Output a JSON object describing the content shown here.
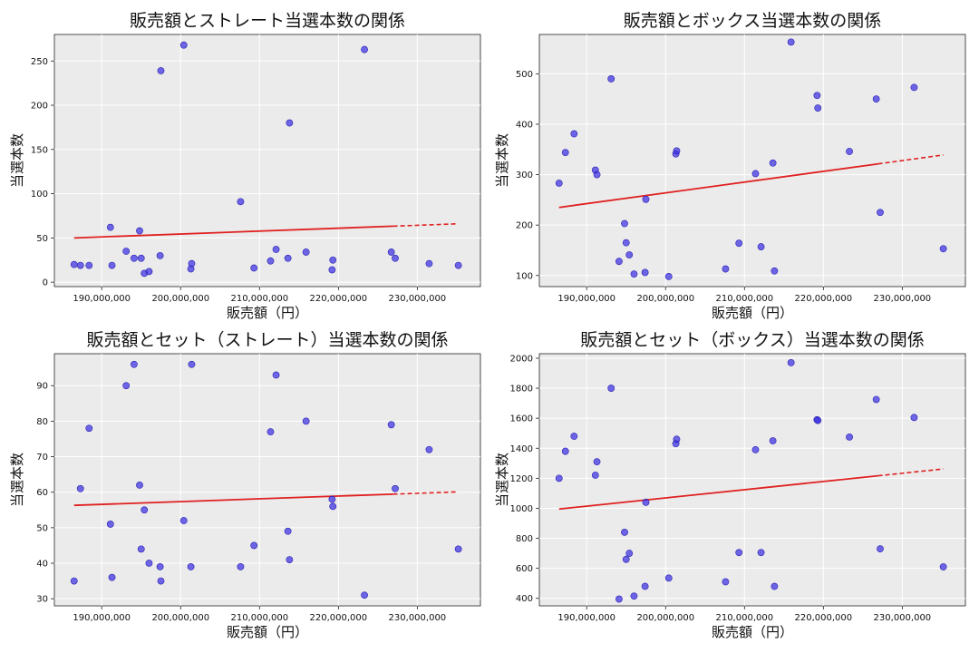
{
  "chart_data": [
    {
      "type": "scatter",
      "title": "販売額とストレート当選本数の関係",
      "xlabel": "販売額（円）",
      "ylabel": "当選本数",
      "xlim": [
        184000000,
        238000000
      ],
      "ylim": [
        -5,
        280
      ],
      "xticks": [
        190000000,
        200000000,
        210000000,
        220000000,
        230000000
      ],
      "xtick_labels": [
        "190,000,000",
        "200,000,000",
        "210,000,000",
        "220,000,000",
        "230,000,000"
      ],
      "yticks": [
        0,
        50,
        100,
        150,
        200,
        250
      ],
      "ytick_labels": [
        "0",
        "50",
        "100",
        "150",
        "200",
        "250"
      ],
      "grid": true,
      "x": [
        186500000,
        187300000,
        188400000,
        191100000,
        191300000,
        193100000,
        194100000,
        194800000,
        195000000,
        195400000,
        196000000,
        197400000,
        197500000,
        200400000,
        201300000,
        201400000,
        207600000,
        209300000,
        211400000,
        212100000,
        213600000,
        213800000,
        215900000,
        219200000,
        219300000,
        223300000,
        226700000,
        227200000,
        231500000,
        235200000
      ],
      "y": [
        20,
        19,
        19,
        62,
        19,
        35,
        27,
        58,
        27,
        10,
        12,
        30,
        239,
        268,
        15,
        21,
        91,
        16,
        24,
        37,
        27,
        180,
        34,
        14,
        25,
        263,
        34,
        27,
        21,
        19
      ],
      "trend": {
        "x1": 186500000,
        "y1": 50,
        "x2": 235200000,
        "y2": 66
      }
    },
    {
      "type": "scatter",
      "title": "販売額とボックス当選本数の関係",
      "xlabel": "販売額（円）",
      "ylabel": "当選本数",
      "xlim": [
        184000000,
        238000000
      ],
      "ylim": [
        78,
        578
      ],
      "xticks": [
        190000000,
        200000000,
        210000000,
        220000000,
        230000000
      ],
      "xtick_labels": [
        "190,000,000",
        "200,000,000",
        "210,000,000",
        "220,000,000",
        "230,000,000"
      ],
      "yticks": [
        100,
        200,
        300,
        400,
        500
      ],
      "ytick_labels": [
        "100",
        "200",
        "300",
        "400",
        "500"
      ],
      "grid": true,
      "x": [
        186500000,
        187300000,
        188400000,
        191100000,
        191300000,
        193100000,
        194100000,
        194800000,
        195000000,
        195400000,
        196000000,
        197400000,
        197500000,
        200400000,
        201300000,
        201400000,
        207600000,
        209300000,
        211400000,
        212100000,
        213600000,
        213800000,
        215900000,
        219200000,
        219300000,
        223300000,
        226700000,
        227200000,
        231500000,
        235200000
      ],
      "y": [
        283,
        344,
        381,
        309,
        300,
        490,
        128,
        203,
        165,
        141,
        103,
        106,
        251,
        98,
        341,
        347,
        113,
        164,
        302,
        157,
        323,
        109,
        563,
        457,
        432,
        346,
        450,
        225,
        473,
        153
      ],
      "trend": {
        "x1": 186500000,
        "y1": 235,
        "x2": 235200000,
        "y2": 339
      }
    },
    {
      "type": "scatter",
      "title": "販売額とセット（ストレート）当選本数の関係",
      "xlabel": "販売額（円）",
      "ylabel": "当選本数",
      "xlim": [
        184000000,
        238000000
      ],
      "ylim": [
        28,
        99
      ],
      "xticks": [
        190000000,
        200000000,
        210000000,
        220000000,
        230000000
      ],
      "xtick_labels": [
        "190,000,000",
        "200,000,000",
        "210,000,000",
        "220,000,000",
        "230,000,000"
      ],
      "yticks": [
        30,
        40,
        50,
        60,
        70,
        80,
        90
      ],
      "ytick_labels": [
        "30",
        "40",
        "50",
        "60",
        "70",
        "80",
        "90"
      ],
      "grid": true,
      "x": [
        186500000,
        187300000,
        188400000,
        191100000,
        191300000,
        193100000,
        194100000,
        194800000,
        195000000,
        195400000,
        196000000,
        197400000,
        197500000,
        200400000,
        201300000,
        201400000,
        207600000,
        209300000,
        211400000,
        212100000,
        213600000,
        213800000,
        215900000,
        219200000,
        219300000,
        223300000,
        226700000,
        227200000,
        231500000,
        235200000
      ],
      "y": [
        35,
        61,
        78,
        51,
        36,
        90,
        96,
        62,
        44,
        55,
        40,
        39,
        35,
        52,
        39,
        96,
        39,
        45,
        77,
        93,
        49,
        41,
        80,
        58,
        56,
        31,
        79,
        61,
        72,
        44
      ],
      "trend": {
        "x1": 186500000,
        "y1": 56.3,
        "x2": 235200000,
        "y2": 60.1
      }
    },
    {
      "type": "scatter",
      "title": "販売額とセット（ボックス）当選本数の関係",
      "xlabel": "販売額（円）",
      "ylabel": "当選本数",
      "xlim": [
        184000000,
        238000000
      ],
      "ylim": [
        350,
        2030
      ],
      "xticks": [
        190000000,
        200000000,
        210000000,
        220000000,
        230000000
      ],
      "xtick_labels": [
        "190,000,000",
        "200,000,000",
        "210,000,000",
        "220,000,000",
        "230,000,000"
      ],
      "yticks": [
        400,
        600,
        800,
        1000,
        1200,
        1400,
        1600,
        1800,
        2000
      ],
      "ytick_labels": [
        "400",
        "600",
        "800",
        "1000",
        "1200",
        "1400",
        "1600",
        "1800",
        "2000"
      ],
      "grid": true,
      "x": [
        186500000,
        187300000,
        188400000,
        191100000,
        191300000,
        193100000,
        194100000,
        194800000,
        195000000,
        195400000,
        196000000,
        197400000,
        197500000,
        200400000,
        201300000,
        201400000,
        207600000,
        209300000,
        211400000,
        212100000,
        213600000,
        213800000,
        215900000,
        219200000,
        219300000,
        223300000,
        226700000,
        227200000,
        231500000,
        235200000
      ],
      "y": [
        1200,
        1380,
        1480,
        1220,
        1310,
        1800,
        395,
        840,
        660,
        700,
        415,
        480,
        1040,
        535,
        1430,
        1460,
        510,
        705,
        1390,
        705,
        1450,
        480,
        1970,
        1590,
        1585,
        1475,
        1725,
        730,
        1605,
        610
      ],
      "trend": {
        "x1": 186500000,
        "y1": 995,
        "x2": 235200000,
        "y2": 1262
      }
    }
  ],
  "colors": {
    "point": "#3a2fe0",
    "trend": "#e02020",
    "plot_bg": "#ebebeb",
    "grid": "#ffffff"
  }
}
